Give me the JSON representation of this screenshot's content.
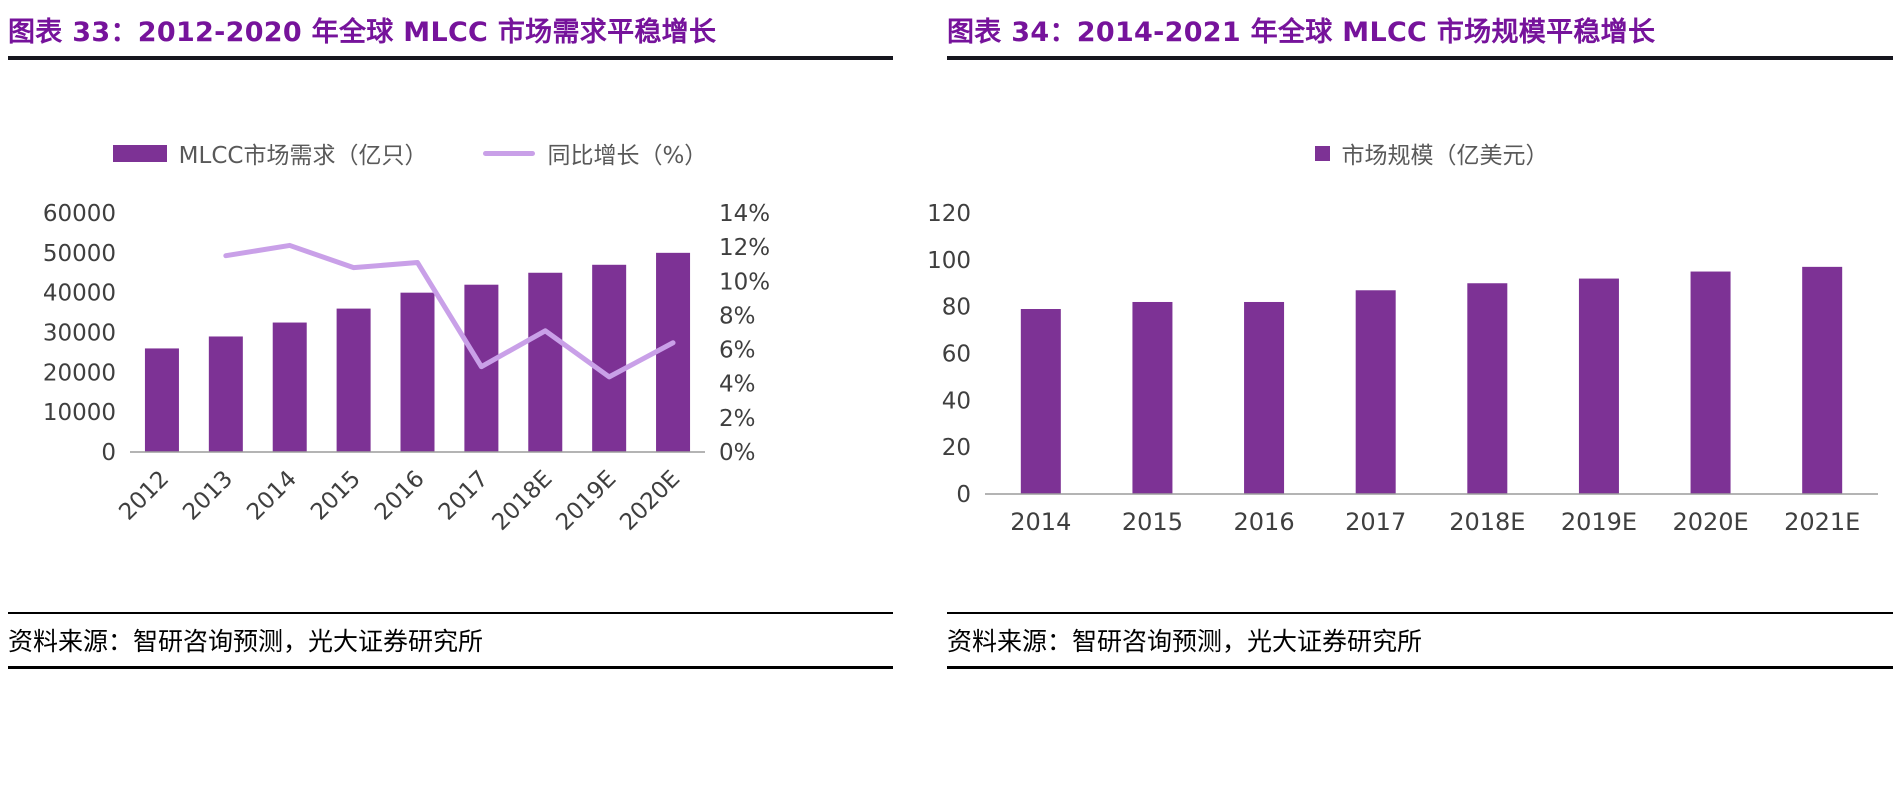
{
  "colors": {
    "title_color": "#76139B",
    "bar_color": "#7D3295",
    "line_color": "#C9A0E8",
    "axis_text": "#3F3F3F",
    "legend_text": "#595959",
    "baseline_color": "#9C9C9C",
    "rule_dark": "#16161E",
    "rule_black": "#000000"
  },
  "sources": {
    "left": "资料来源：智研咨询预测，光大证券研究所",
    "right": "资料来源：智研咨询预测，光大证券研究所"
  },
  "chart_data": [
    {
      "id": "global-mlcc-demand",
      "type": "bar",
      "title": "图表 33：2012-2020 年全球 MLCC 市场需求平稳增长",
      "categories": [
        "2012",
        "2013",
        "2014",
        "2015",
        "2016",
        "2017",
        "2018E",
        "2019E",
        "2020E"
      ],
      "series": [
        {
          "name": "MLCC市场需求（亿只）",
          "type": "bar",
          "axis": "left",
          "values": [
            26000,
            29000,
            32500,
            36000,
            40000,
            42000,
            45000,
            47000,
            50000
          ]
        },
        {
          "name": "同比增长（%）",
          "type": "line",
          "axis": "right",
          "values": [
            null,
            11.5,
            12.1,
            10.8,
            11.1,
            5.0,
            7.1,
            4.4,
            6.4
          ]
        }
      ],
      "left_axis": {
        "min": 0,
        "max": 60000,
        "step": 10000,
        "suffix": ""
      },
      "right_axis": {
        "min": 0,
        "max": 14,
        "step": 2,
        "suffix": "%"
      },
      "x_label_rotation": -45,
      "legend_position": "top",
      "grid": false
    },
    {
      "id": "global-mlcc-market-size",
      "type": "bar",
      "title": "图表 34：2014-2021 年全球 MLCC 市场规模平稳增长",
      "categories": [
        "2014",
        "2015",
        "2016",
        "2017",
        "2018E",
        "2019E",
        "2020E",
        "2021E"
      ],
      "series": [
        {
          "name": "市场规模（亿美元）",
          "type": "bar",
          "axis": "left",
          "values": [
            79,
            82,
            82,
            87,
            90,
            92,
            95,
            97
          ]
        }
      ],
      "left_axis": {
        "min": 0,
        "max": 120,
        "step": 20,
        "suffix": ""
      },
      "x_label_rotation": 0,
      "legend_position": "top",
      "grid": false
    }
  ]
}
